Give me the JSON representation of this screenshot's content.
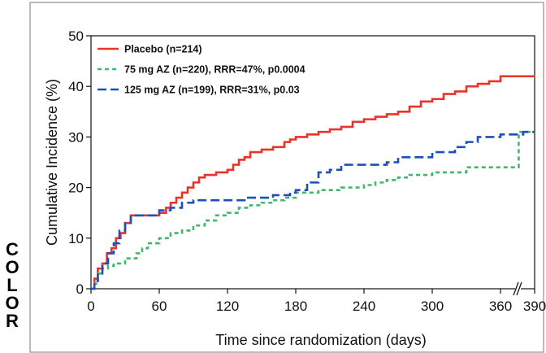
{
  "side_label": [
    "C",
    "O",
    "L",
    "O",
    "R"
  ],
  "chart_data": {
    "type": "line",
    "step": true,
    "xlabel": "Time since randomization (days)",
    "ylabel": "Cumulative Incidence (%)",
    "xlim": [
      0,
      390
    ],
    "ylim": [
      0,
      50
    ],
    "xticks": [
      0,
      60,
      120,
      180,
      240,
      300,
      360,
      390
    ],
    "yticks": [
      0,
      10,
      20,
      30,
      40,
      50
    ],
    "axis_break_x": 375,
    "grid": false,
    "legend_position": "top-left",
    "series": [
      {
        "name": "Placebo (n=214)",
        "color": "#e8322a",
        "dash": "solid",
        "x": [
          0,
          3,
          6,
          10,
          14,
          18,
          22,
          26,
          30,
          35,
          40,
          50,
          60,
          66,
          70,
          75,
          80,
          85,
          90,
          95,
          100,
          110,
          120,
          125,
          130,
          135,
          140,
          150,
          160,
          170,
          175,
          180,
          190,
          200,
          210,
          220,
          230,
          240,
          250,
          260,
          270,
          280,
          290,
          300,
          310,
          320,
          330,
          340,
          350,
          360,
          390
        ],
        "y": [
          0,
          2,
          4,
          5,
          7,
          8,
          10,
          11,
          13,
          14.5,
          14.5,
          14.5,
          15,
          16,
          17,
          18,
          19,
          20,
          21,
          22,
          22.5,
          23,
          23.5,
          24.5,
          25.5,
          26,
          27,
          27.5,
          28,
          29,
          29.5,
          30,
          30.5,
          31,
          31.5,
          32,
          33,
          33.5,
          34,
          34.5,
          35,
          36,
          37,
          37.5,
          38.5,
          39,
          40,
          40.5,
          41,
          42,
          42
        ]
      },
      {
        "name": "75 mg AZ (n=220), RRR=47%, p0.0004",
        "color": "#3fb86b",
        "dash": "dash",
        "x": [
          0,
          3,
          6,
          10,
          15,
          20,
          30,
          40,
          45,
          50,
          60,
          70,
          80,
          90,
          100,
          110,
          120,
          130,
          140,
          150,
          160,
          170,
          180,
          200,
          220,
          240,
          250,
          260,
          270,
          280,
          300,
          330,
          360,
          375,
          376,
          390
        ],
        "y": [
          0,
          1,
          3,
          4,
          4.5,
          5,
          6,
          7,
          8,
          9,
          10,
          11,
          11.5,
          12.5,
          13.5,
          14.5,
          15,
          16,
          16.5,
          17,
          17.5,
          18,
          19,
          19.5,
          20,
          20.5,
          21,
          21.5,
          22,
          22.5,
          23,
          24,
          24,
          24,
          31,
          31
        ]
      },
      {
        "name": "125 mg AZ (n=199), RRR=31%, p0.03",
        "color": "#1f4fb8",
        "dash": "longdash",
        "x": [
          0,
          3,
          6,
          10,
          15,
          20,
          25,
          30,
          35,
          40,
          50,
          60,
          70,
          80,
          90,
          100,
          120,
          135,
          160,
          175,
          180,
          190,
          200,
          210,
          220,
          240,
          260,
          270,
          280,
          300,
          320,
          330,
          340,
          360,
          380,
          390
        ],
        "y": [
          0,
          1.5,
          3,
          5,
          7,
          9,
          11.5,
          13,
          14.5,
          14.5,
          14.5,
          15.5,
          16,
          17,
          17.5,
          17.5,
          17.5,
          18,
          18.5,
          19,
          19.5,
          21,
          23,
          23.5,
          24.5,
          24.5,
          25,
          26,
          26,
          27,
          28,
          29,
          30,
          30.5,
          31,
          31
        ]
      }
    ]
  }
}
